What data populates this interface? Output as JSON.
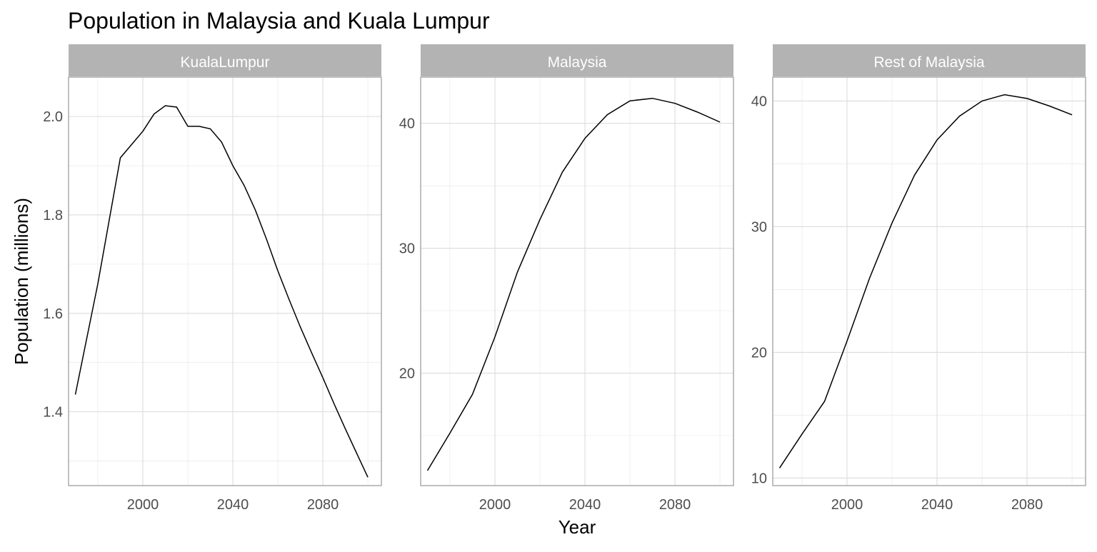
{
  "chart_data": {
    "type": "line",
    "title": "Population in Malaysia and Kuala Lumpur",
    "xlabel": "Year",
    "ylabel": "Population (millions)",
    "grid": true,
    "facets": [
      {
        "label": "KualaLumpur",
        "xlim": [
          1967,
          2106
        ],
        "ylim": [
          1.25,
          2.08
        ],
        "x_ticks": [
          2000,
          2040,
          2080
        ],
        "y_ticks": [
          "1.4",
          "1.6",
          "1.8",
          "2.0"
        ],
        "series": [
          {
            "x": [
              1970,
              1980,
              1990,
              2000,
              2005,
              2010,
              2015,
              2020,
              2025,
              2030,
              2035,
              2040,
              2045,
              2050,
              2055,
              2060,
              2065,
              2070,
              2075,
              2080,
              2085,
              2090,
              2095,
              2100
            ],
            "values": [
              1.435,
              1.66,
              1.916,
              1.97,
              2.005,
              2.022,
              2.019,
              1.98,
              1.98,
              1.975,
              1.948,
              1.9,
              1.86,
              1.81,
              1.75,
              1.686,
              1.628,
              1.572,
              1.52,
              1.469,
              1.416,
              1.365,
              1.316,
              1.267
            ]
          }
        ]
      },
      {
        "label": "Malaysia",
        "xlim": [
          1967,
          2106
        ],
        "ylim": [
          11.0,
          43.7
        ],
        "x_ticks": [
          2000,
          2040,
          2080
        ],
        "y_ticks": [
          "20",
          "30",
          "40"
        ],
        "series": [
          {
            "x": [
              1970,
              1980,
              1990,
              2000,
              2010,
              2020,
              2030,
              2040,
              2050,
              2060,
              2070,
              2080,
              2090,
              2100
            ],
            "values": [
              12.2,
              15.2,
              18.3,
              22.9,
              28.1,
              32.3,
              36.1,
              38.8,
              40.7,
              41.8,
              42.0,
              41.6,
              40.9,
              40.1
            ]
          }
        ]
      },
      {
        "label": "Rest of Malaysia",
        "xlim": [
          1967,
          2106
        ],
        "ylim": [
          9.4,
          41.9
        ],
        "x_ticks": [
          2000,
          2040,
          2080
        ],
        "y_ticks": [
          "10",
          "20",
          "30",
          "40"
        ],
        "series": [
          {
            "x": [
              1970,
              1980,
              1990,
              2000,
              2010,
              2020,
              2030,
              2040,
              2050,
              2060,
              2070,
              2080,
              2090,
              2100
            ],
            "values": [
              10.8,
              13.5,
              16.1,
              20.9,
              25.9,
              30.3,
              34.1,
              36.9,
              38.8,
              40.0,
              40.5,
              40.2,
              39.6,
              38.9
            ]
          }
        ]
      }
    ]
  }
}
